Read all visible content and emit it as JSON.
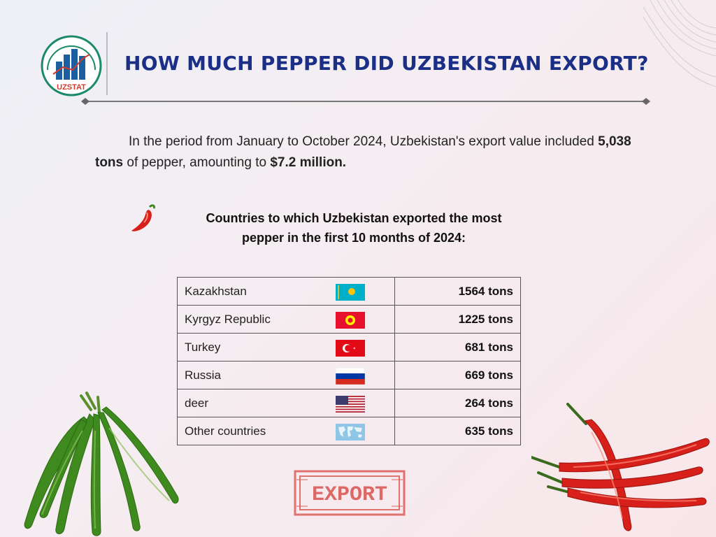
{
  "header": {
    "logo_text": "UZSTAT",
    "title": "HOW MUCH PEPPER DID UZBEKISTAN EXPORT?"
  },
  "intro": {
    "part1": "In the period from January to October 2024, Uzbekistan's export value included ",
    "tons": "5,038 tons",
    "part2": " of pepper, amounting to ",
    "value": "$7.2 million.",
    "part3": ""
  },
  "subtitle": {
    "line1": "Countries to which Uzbekistan exported the most",
    "line2": "pepper in the first 10 months of 2024:"
  },
  "table": {
    "rows": [
      {
        "country": "Kazakhstan",
        "flag": "kazakhstan-flag",
        "amount": "1564 tons"
      },
      {
        "country": "Kyrgyz Republic",
        "flag": "kyrgyzstan-flag",
        "amount": "1225 tons"
      },
      {
        "country": "Turkey",
        "flag": "turkey-flag",
        "amount": "681 tons"
      },
      {
        "country": "Russia",
        "flag": "russia-flag",
        "amount": "669 tons"
      },
      {
        "country": "deer",
        "flag": "usa-flag",
        "amount": "264 tons"
      },
      {
        "country": "Other countries",
        "flag": "world-map-flag",
        "amount": "635 tons"
      }
    ]
  },
  "stamp": {
    "text": "EXPORT"
  },
  "colors": {
    "title": "#1c2f86",
    "stamp": "#d9534f",
    "green_pepper": "#3f8a1e",
    "red_pepper": "#d8201a"
  }
}
